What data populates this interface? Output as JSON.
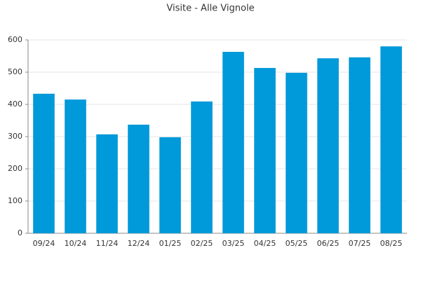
{
  "chart_data": {
    "type": "bar",
    "title": "Visite - Alle Vignole",
    "categories": [
      "09/24",
      "10/24",
      "11/24",
      "12/24",
      "01/25",
      "02/25",
      "03/25",
      "04/25",
      "05/25",
      "06/25",
      "07/25",
      "08/25"
    ],
    "values": [
      433,
      415,
      307,
      337,
      298,
      409,
      563,
      513,
      498,
      543,
      546,
      580
    ],
    "color": "#0099d9",
    "ylim": [
      0,
      600
    ],
    "yticks": [
      0,
      100,
      200,
      300,
      400,
      500,
      600
    ],
    "grid": true
  }
}
